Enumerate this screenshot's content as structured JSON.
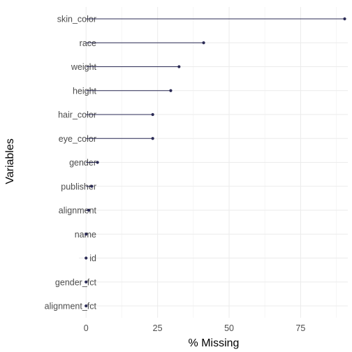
{
  "chart_data": {
    "type": "lollipop",
    "xlabel": "% Missing",
    "ylabel": "Variables",
    "xlim": [
      -2.5,
      91.5
    ],
    "x_ticks": [
      0,
      25,
      50,
      75
    ],
    "x_tick_labels": [
      "0",
      "25",
      "50",
      "75"
    ],
    "grid": true,
    "color": "#2b2b55",
    "categories": [
      "skin_color",
      "race",
      "weight",
      "height",
      "hair_color",
      "eye_color",
      "gender",
      "publisher",
      "alignment",
      "name",
      "id",
      "gender_fct",
      "alignment_fct"
    ],
    "values": [
      90.4,
      41.1,
      32.5,
      29.6,
      23.3,
      23.3,
      4.0,
      2.0,
      0.9,
      0.0,
      0.0,
      0.0,
      0.0
    ]
  }
}
